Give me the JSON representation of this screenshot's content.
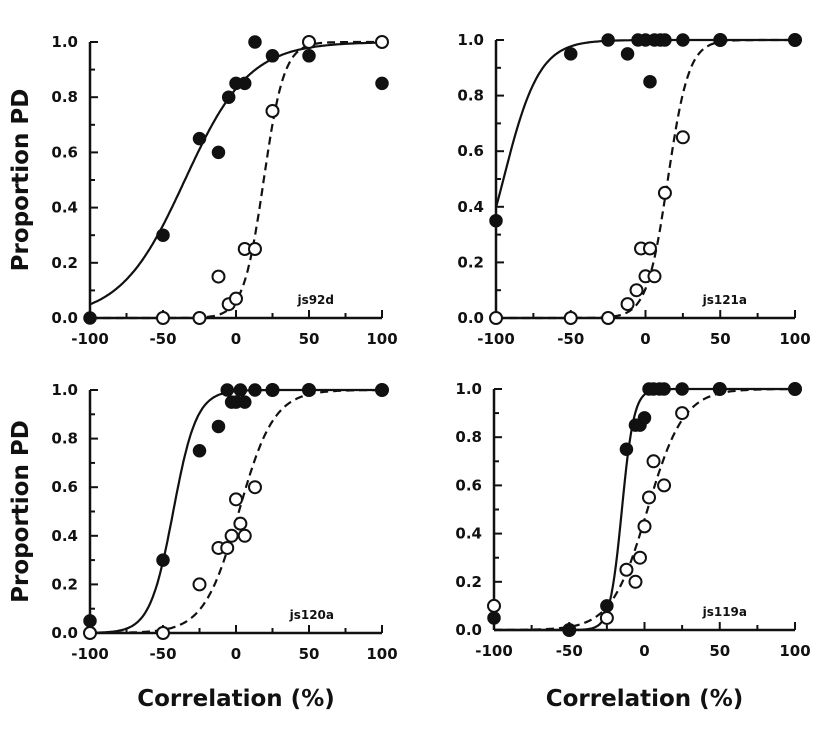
{
  "figure": {
    "shared_ylabel": "Proportion PD",
    "shared_xlabel": "Correlation (%)"
  },
  "chart_data": [
    {
      "type": "scatter",
      "label": "js92d",
      "xlabel": "Correlation (%)",
      "ylabel": "Proportion PD",
      "xlim": [
        -100,
        100
      ],
      "ylim": [
        0,
        1
      ],
      "xticks": [
        -100,
        -50,
        0,
        50,
        100
      ],
      "yticks": [
        0.0,
        0.2,
        0.4,
        0.6,
        0.8,
        1.0
      ],
      "series": [
        {
          "marker": "filled",
          "points": [
            [
              -100,
              0.0
            ],
            [
              -50,
              0.3
            ],
            [
              -25,
              0.65
            ],
            [
              -12,
              0.6
            ],
            [
              -5,
              0.8
            ],
            [
              0,
              0.85
            ],
            [
              6,
              0.85
            ],
            [
              13,
              1.0
            ],
            [
              25,
              0.95
            ],
            [
              50,
              0.95
            ],
            [
              100,
              0.85
            ]
          ],
          "fit": {
            "style": "solid",
            "midpoint": -35,
            "scale": 22
          }
        },
        {
          "marker": "open",
          "points": [
            [
              -50,
              0.0
            ],
            [
              -25,
              0.0
            ],
            [
              -12,
              0.15
            ],
            [
              -5,
              0.05
            ],
            [
              0,
              0.07
            ],
            [
              6,
              0.25
            ],
            [
              13,
              0.25
            ],
            [
              25,
              0.75
            ],
            [
              50,
              1.0
            ],
            [
              100,
              1.0
            ]
          ],
          "fit": {
            "style": "dashed",
            "midpoint": 19,
            "scale": 7
          }
        }
      ]
    },
    {
      "type": "scatter",
      "label": "js121a",
      "xlabel": "",
      "ylabel": "",
      "xlim": [
        -100,
        100
      ],
      "ylim": [
        0,
        1
      ],
      "xticks": [
        -100,
        -50,
        0,
        50,
        100
      ],
      "yticks": [
        0.0,
        0.2,
        0.4,
        0.6,
        0.8,
        1.0
      ],
      "series": [
        {
          "marker": "filled",
          "points": [
            [
              -100,
              0.35
            ],
            [
              -50,
              0.95
            ],
            [
              -25,
              1.0
            ],
            [
              -12,
              0.95
            ],
            [
              -5,
              1.0
            ],
            [
              0,
              1.0
            ],
            [
              3,
              0.85
            ],
            [
              6,
              1.0
            ],
            [
              10,
              1.0
            ],
            [
              13,
              1.0
            ],
            [
              25,
              1.0
            ],
            [
              50,
              1.0
            ],
            [
              100,
              1.0
            ]
          ],
          "fit": {
            "style": "solid",
            "midpoint": -95,
            "scale": 12
          }
        },
        {
          "marker": "open",
          "points": [
            [
              -100,
              0.0
            ],
            [
              -50,
              0.0
            ],
            [
              -25,
              0.0
            ],
            [
              -12,
              0.05
            ],
            [
              -6,
              0.1
            ],
            [
              -3,
              0.25
            ],
            [
              0,
              0.15
            ],
            [
              3,
              0.25
            ],
            [
              6,
              0.15
            ],
            [
              13,
              0.45
            ],
            [
              25,
              0.65
            ],
            [
              50,
              1.0
            ],
            [
              100,
              1.0
            ]
          ],
          "fit": {
            "style": "dashed",
            "midpoint": 15,
            "scale": 7
          }
        }
      ]
    },
    {
      "type": "scatter",
      "label": "js120a",
      "xlabel": "Correlation (%)",
      "ylabel": "Proportion PD",
      "xlim": [
        -100,
        100
      ],
      "ylim": [
        0,
        1
      ],
      "xticks": [
        -100,
        -50,
        0,
        50,
        100
      ],
      "yticks": [
        0.0,
        0.2,
        0.4,
        0.6,
        0.8,
        1.0
      ],
      "series": [
        {
          "marker": "filled",
          "points": [
            [
              -100,
              0.05
            ],
            [
              -50,
              0.3
            ],
            [
              -25,
              0.75
            ],
            [
              -12,
              0.85
            ],
            [
              -6,
              1.0
            ],
            [
              -3,
              0.95
            ],
            [
              0,
              0.95
            ],
            [
              3,
              1.0
            ],
            [
              6,
              0.95
            ],
            [
              13,
              1.0
            ],
            [
              25,
              1.0
            ],
            [
              50,
              1.0
            ],
            [
              100,
              1.0
            ]
          ],
          "fit": {
            "style": "solid",
            "midpoint": -43,
            "scale": 8
          }
        },
        {
          "marker": "open",
          "points": [
            [
              -100,
              0.0
            ],
            [
              -50,
              0.0
            ],
            [
              -25,
              0.2
            ],
            [
              -12,
              0.35
            ],
            [
              -6,
              0.35
            ],
            [
              -3,
              0.4
            ],
            [
              0,
              0.55
            ],
            [
              3,
              0.45
            ],
            [
              6,
              0.4
            ],
            [
              13,
              0.6
            ],
            [
              25,
              1.0
            ],
            [
              50,
              1.0
            ],
            [
              100,
              1.0
            ]
          ],
          "fit": {
            "style": "dashed",
            "midpoint": 2,
            "scale": 12
          }
        }
      ]
    },
    {
      "type": "scatter",
      "label": "js119a",
      "xlabel": "Correlation (%)",
      "ylabel": "",
      "xlim": [
        -100,
        100
      ],
      "ylim": [
        0,
        1
      ],
      "xticks": [
        -100,
        -50,
        0,
        50,
        100
      ],
      "yticks": [
        0.0,
        0.2,
        0.4,
        0.6,
        0.8,
        1.0
      ],
      "series": [
        {
          "marker": "filled",
          "points": [
            [
              -100,
              0.05
            ],
            [
              -50,
              0.0
            ],
            [
              -25,
              0.1
            ],
            [
              -12,
              0.75
            ],
            [
              -6,
              0.85
            ],
            [
              -3,
              0.85
            ],
            [
              0,
              0.88
            ],
            [
              3,
              1.0
            ],
            [
              6,
              1.0
            ],
            [
              10,
              1.0
            ],
            [
              13,
              1.0
            ],
            [
              25,
              1.0
            ],
            [
              50,
              1.0
            ],
            [
              100,
              1.0
            ]
          ],
          "fit": {
            "style": "solid",
            "midpoint": -15,
            "scale": 4
          }
        },
        {
          "marker": "open",
          "points": [
            [
              -100,
              0.1
            ],
            [
              -50,
              0.0
            ],
            [
              -25,
              0.05
            ],
            [
              -12,
              0.25
            ],
            [
              -6,
              0.2
            ],
            [
              -3,
              0.3
            ],
            [
              0,
              0.43
            ],
            [
              3,
              0.55
            ],
            [
              6,
              0.7
            ],
            [
              13,
              0.6
            ],
            [
              25,
              0.9
            ],
            [
              50,
              1.0
            ],
            [
              100,
              1.0
            ]
          ],
          "fit": {
            "style": "dashed",
            "midpoint": 2,
            "scale": 12
          }
        }
      ]
    }
  ]
}
